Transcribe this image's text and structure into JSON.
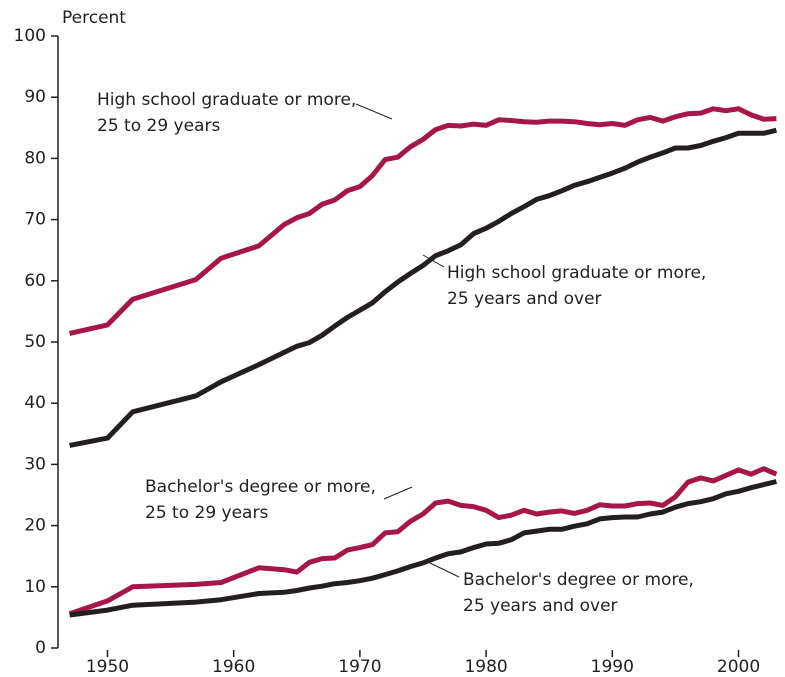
{
  "chart_data": {
    "type": "line",
    "y_label": "Percent",
    "x": [
      1947,
      1950,
      1952,
      1957,
      1959,
      1962,
      1964,
      1965,
      1966,
      1967,
      1968,
      1969,
      1970,
      1971,
      1972,
      1973,
      1974,
      1975,
      1976,
      1977,
      1978,
      1979,
      1980,
      1981,
      1982,
      1983,
      1984,
      1985,
      1986,
      1987,
      1988,
      1989,
      1990,
      1991,
      1992,
      1993,
      1994,
      1995,
      1996,
      1997,
      1998,
      1999,
      2000,
      2001,
      2002,
      2003
    ],
    "xlim": [
      1946,
      2004
    ],
    "xticks": [
      1950,
      1960,
      1970,
      1980,
      1990,
      2000
    ],
    "ylim": [
      0,
      100
    ],
    "yticks": [
      0,
      10,
      20,
      30,
      40,
      50,
      60,
      70,
      80,
      90,
      100
    ],
    "series": [
      {
        "label": [
          "High school graduate or more,",
          "25 to 29 years"
        ],
        "color": "#a6164b",
        "values": [
          51.4,
          52.8,
          57,
          60.2,
          63.7,
          65.7,
          69.2,
          70.3,
          71,
          72.5,
          73.2,
          74.7,
          75.4,
          77.2,
          79.8,
          80.2,
          81.9,
          83.1,
          84.7,
          85.4,
          85.3,
          85.6,
          85.4,
          86.3,
          86.2,
          86,
          85.9,
          86.1,
          86.1,
          86,
          85.7,
          85.5,
          85.7,
          85.4,
          86.3,
          86.7,
          86.1,
          86.8,
          87.3,
          87.4,
          88.1,
          87.8,
          88.1,
          87.1,
          86.4,
          86.5
        ]
      },
      {
        "label": [
          "High school graduate or more,",
          "25 years and over"
        ],
        "color": "#231f20",
        "values": [
          33.1,
          34.3,
          38.6,
          41.2,
          43.5,
          46.3,
          48.3,
          49.3,
          49.9,
          51.1,
          52.6,
          54,
          55.2,
          56.4,
          58.2,
          59.8,
          61.2,
          62.5,
          64.1,
          64.9,
          65.9,
          67.7,
          68.6,
          69.7,
          71,
          72.1,
          73.3,
          73.9,
          74.7,
          75.6,
          76.2,
          76.9,
          77.6,
          78.4,
          79.4,
          80.2,
          80.9,
          81.7,
          81.7,
          82.1,
          82.8,
          83.4,
          84.1,
          84.1,
          84.1,
          84.6
        ]
      },
      {
        "label": [
          "Bachelor's degree or more,",
          "25 to 29 years"
        ],
        "color": "#a6164b",
        "values": [
          5.6,
          7.7,
          10,
          10.4,
          10.7,
          13.1,
          12.8,
          12.4,
          14,
          14.6,
          14.7,
          16,
          16.4,
          16.9,
          18.8,
          19,
          20.7,
          21.9,
          23.7,
          24,
          23.3,
          23.1,
          22.5,
          21.3,
          21.7,
          22.5,
          21.9,
          22.2,
          22.4,
          22,
          22.5,
          23.4,
          23.2,
          23.2,
          23.6,
          23.7,
          23.3,
          24.7,
          27.1,
          27.8,
          27.3,
          28.2,
          29.1,
          28.4,
          29.3,
          28.4
        ]
      },
      {
        "label": [
          "Bachelor's degree or more,",
          "25 years and over"
        ],
        "color": "#231f20",
        "values": [
          5.4,
          6.2,
          7,
          7.5,
          7.9,
          8.9,
          9.1,
          9.4,
          9.8,
          10.1,
          10.5,
          10.7,
          11,
          11.4,
          12,
          12.6,
          13.3,
          13.9,
          14.7,
          15.4,
          15.7,
          16.4,
          17,
          17.1,
          17.7,
          18.8,
          19.1,
          19.4,
          19.4,
          19.9,
          20.3,
          21.1,
          21.3,
          21.4,
          21.4,
          21.9,
          22.2,
          23,
          23.6,
          23.9,
          24.4,
          25.2,
          25.6,
          26.2,
          26.7,
          27.2
        ]
      }
    ]
  }
}
